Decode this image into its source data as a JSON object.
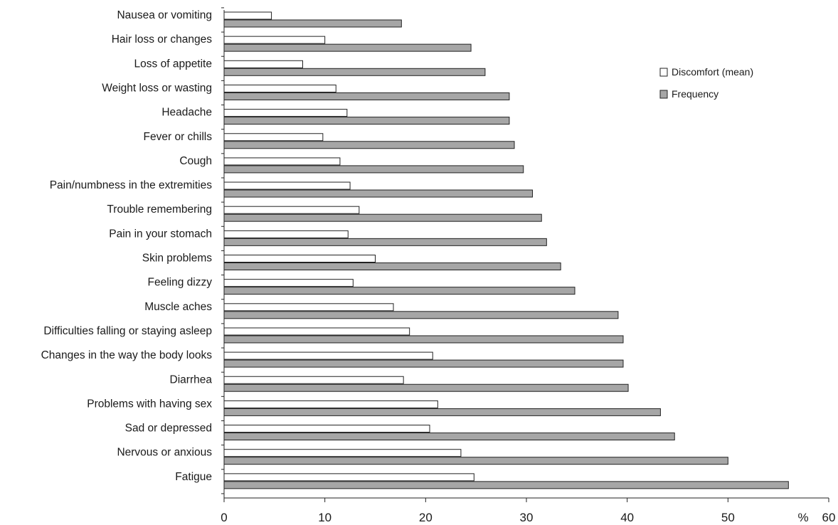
{
  "chart_data": {
    "type": "bar",
    "orientation": "horizontal",
    "categories": [
      "Nausea or vomiting",
      "Hair loss or changes",
      "Loss of appetite",
      "Weight loss or wasting",
      "Headache",
      "Fever or chills",
      "Cough",
      "Pain/numbness in the extremities",
      "Trouble remembering",
      "Pain in your stomach",
      "Skin problems",
      "Feeling dizzy",
      "Muscle aches",
      "Difficulties falling or staying asleep",
      "Changes in the way the body looks",
      "Diarrhea",
      "Problems with having sex",
      "Sad or depressed",
      "Nervous or anxious",
      "Fatigue"
    ],
    "series": [
      {
        "name": "Discomfort (mean)",
        "color": "#ffffff",
        "values": [
          4.7,
          10.0,
          7.8,
          11.1,
          12.2,
          9.8,
          11.5,
          12.5,
          13.4,
          12.3,
          15.0,
          12.8,
          16.8,
          18.4,
          20.7,
          17.8,
          21.2,
          20.4,
          23.5,
          24.8
        ]
      },
      {
        "name": "Frequency",
        "color": "#a6a6a6",
        "values": [
          17.6,
          24.5,
          25.9,
          28.3,
          28.3,
          28.8,
          29.7,
          30.6,
          31.5,
          32.0,
          33.4,
          34.8,
          39.1,
          39.6,
          39.6,
          40.1,
          43.3,
          44.7,
          50.0,
          56.0
        ]
      }
    ],
    "xlim": [
      0,
      60
    ],
    "xticks": [
      "0",
      "10",
      "20",
      "30",
      "40",
      "50",
      "60"
    ],
    "x_unit": "%",
    "legend": "top-right",
    "grid": false
  }
}
